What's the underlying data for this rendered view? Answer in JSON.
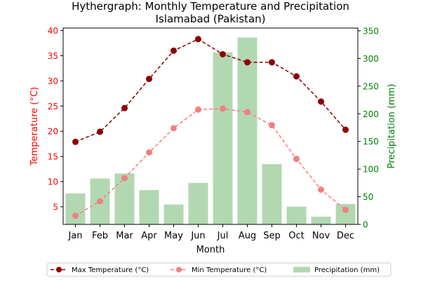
{
  "chart_data": {
    "type": "bar+line",
    "title": "Hythergraph: Monthly Temperature and Precipitation",
    "subtitle": "Islamabad (Pakistan)",
    "xlabel": "Month",
    "ylabel_left": "Temperature (°C)",
    "ylabel_right": "Precipitation (mm)",
    "categories": [
      "Jan",
      "Feb",
      "Mar",
      "Apr",
      "May",
      "Jun",
      "Jul",
      "Aug",
      "Sep",
      "Oct",
      "Nov",
      "Dec"
    ],
    "ylim_left": [
      1.5,
      40.5
    ],
    "yticks_left": [
      5,
      10,
      15,
      20,
      25,
      30,
      35,
      40
    ],
    "ylim_right": [
      0,
      355
    ],
    "yticks_right": [
      0,
      50,
      100,
      150,
      200,
      250,
      300,
      350
    ],
    "grid": false,
    "legend_position": "bottom",
    "series": [
      {
        "name": "Max Temperature (°C)",
        "kind": "line",
        "axis": "left",
        "color": "#8b0000",
        "values": [
          17.9,
          19.9,
          24.6,
          30.4,
          36.0,
          38.3,
          35.3,
          33.7,
          33.7,
          30.9,
          25.9,
          20.3
        ]
      },
      {
        "name": "Min Temperature (°C)",
        "kind": "line",
        "axis": "left",
        "color": "#f08080",
        "values": [
          3.2,
          6.1,
          10.7,
          15.8,
          20.6,
          24.3,
          24.5,
          23.8,
          21.2,
          14.5,
          8.4,
          4.4
        ]
      },
      {
        "name": "Precipitation (mm)",
        "kind": "bar",
        "axis": "right",
        "color": "#b2d8b2",
        "values": [
          56,
          83,
          92,
          62,
          36,
          75,
          311,
          338,
          109,
          32,
          14,
          37
        ]
      }
    ]
  },
  "colors": {
    "left_axis": "#ff0000",
    "right_axis": "#008000",
    "text": "#000000"
  }
}
